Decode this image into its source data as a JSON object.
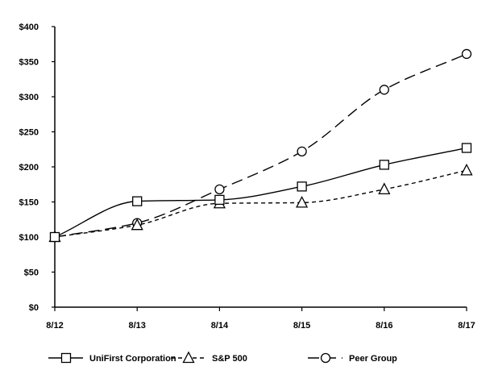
{
  "chart_data": {
    "type": "line",
    "title": "",
    "xlabel": "",
    "ylabel": "",
    "categories": [
      "8/12",
      "8/13",
      "8/14",
      "8/15",
      "8/16",
      "8/17"
    ],
    "y_ticks": [
      "$0",
      "$50",
      "$100",
      "$150",
      "$200",
      "$250",
      "$300",
      "$350",
      "$400"
    ],
    "ylim": [
      0,
      400
    ],
    "grid": false,
    "legend_position": "bottom",
    "series": [
      {
        "name": "UniFirst Corporation",
        "marker": "square",
        "line_style": "solid",
        "color": "#000000",
        "values": [
          100,
          151,
          153,
          172,
          203,
          227
        ]
      },
      {
        "name": "S&P 500",
        "marker": "triangle",
        "line_style": "dashed",
        "color": "#000000",
        "values": [
          100,
          117,
          148,
          149,
          168,
          195
        ]
      },
      {
        "name": "Peer Group",
        "marker": "circle",
        "line_style": "long-dash",
        "color": "#000000",
        "values": [
          100,
          120,
          168,
          222,
          310,
          361
        ]
      }
    ]
  }
}
